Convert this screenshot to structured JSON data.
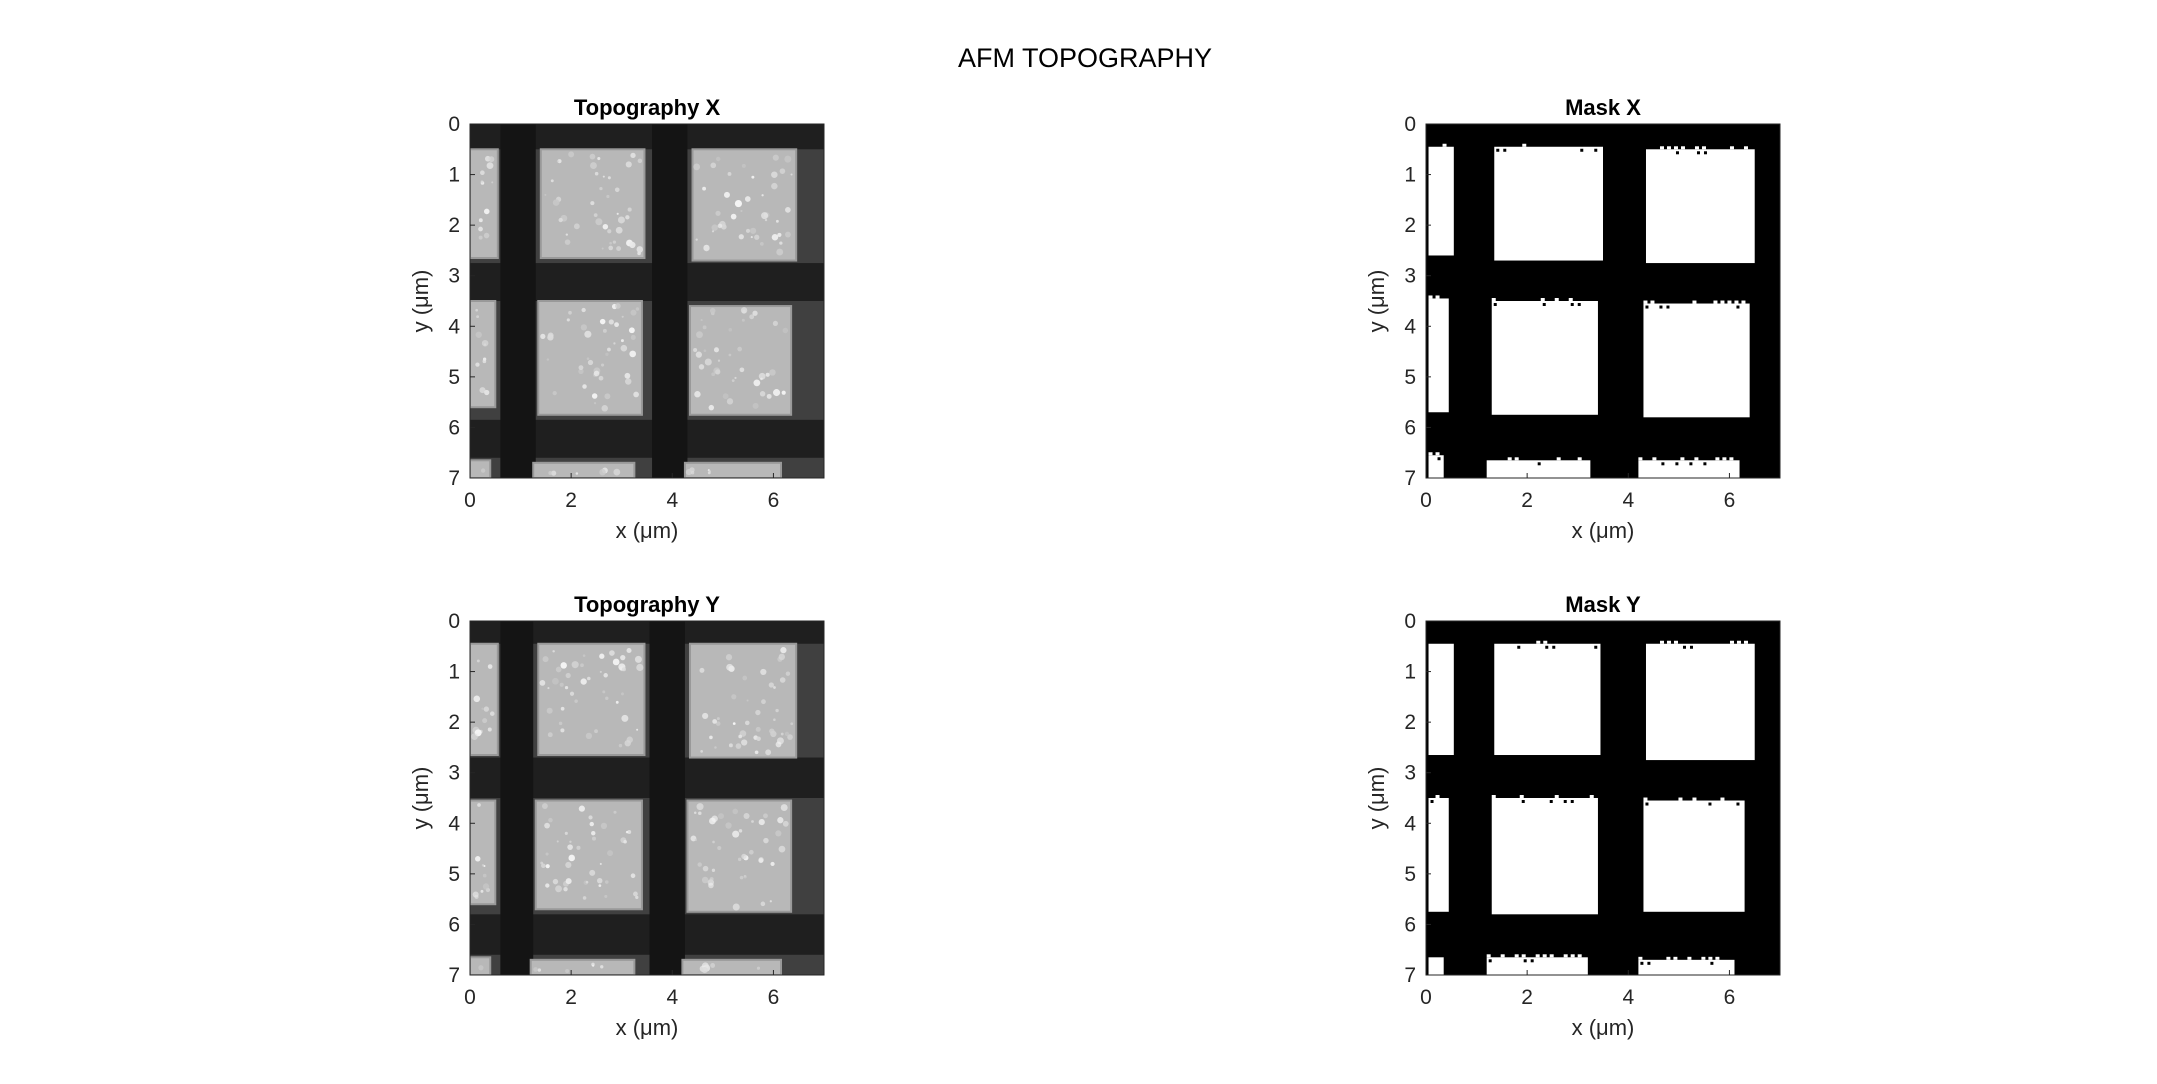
{
  "figure": {
    "title": "AFM TOPOGRAPHY",
    "background": "#ffffff"
  },
  "chart_data": [
    {
      "type": "heatmap",
      "title": "Topography X",
      "xlabel": "x (μm)",
      "ylabel": "y (μm)",
      "xlim": [
        0,
        7
      ],
      "ylim": [
        0,
        7
      ],
      "y_reversed": true,
      "xticks": [
        0,
        2,
        4,
        6
      ],
      "yticks": [
        0,
        1,
        2,
        3,
        4,
        5,
        6,
        7
      ],
      "colormap": "gray",
      "background_value": 0.25,
      "gap_value": 0.12,
      "pad_value": 0.72,
      "squares": [
        {
          "x0": 0.0,
          "x1": 0.55,
          "y0": 0.5,
          "y1": 2.65
        },
        {
          "x0": 1.4,
          "x1": 3.45,
          "y0": 0.5,
          "y1": 2.65
        },
        {
          "x0": 4.4,
          "x1": 6.45,
          "y0": 0.5,
          "y1": 2.7
        },
        {
          "x0": 0.0,
          "x1": 0.5,
          "y0": 3.5,
          "y1": 5.6
        },
        {
          "x0": 1.35,
          "x1": 3.4,
          "y0": 3.5,
          "y1": 5.75
        },
        {
          "x0": 4.35,
          "x1": 6.35,
          "y0": 3.6,
          "y1": 5.75
        },
        {
          "x0": 0.0,
          "x1": 0.4,
          "y0": 6.65,
          "y1": 7.0
        },
        {
          "x0": 1.25,
          "x1": 3.25,
          "y0": 6.7,
          "y1": 7.0
        },
        {
          "x0": 4.25,
          "x1": 6.15,
          "y0": 6.7,
          "y1": 7.0
        }
      ],
      "columns": [
        {
          "x0": 0.6,
          "x1": 1.3
        },
        {
          "x0": 3.6,
          "x1": 4.3
        }
      ],
      "rows": [
        {
          "y0": 0.0,
          "y1": 0.5
        },
        {
          "y0": 2.75,
          "y1": 3.5
        },
        {
          "y0": 5.85,
          "y1": 6.6
        }
      ]
    },
    {
      "type": "heatmap",
      "title": "Mask X",
      "xlabel": "x (μm)",
      "ylabel": "y (μm)",
      "xlim": [
        0,
        7
      ],
      "ylim": [
        0,
        7
      ],
      "y_reversed": true,
      "xticks": [
        0,
        2,
        4,
        6
      ],
      "yticks": [
        0,
        1,
        2,
        3,
        4,
        5,
        6,
        7
      ],
      "colormap": "binary",
      "background_value": 0,
      "pad_value": 1,
      "squares": [
        {
          "x0": 0.05,
          "x1": 0.55,
          "y0": 0.45,
          "y1": 2.6
        },
        {
          "x0": 1.35,
          "x1": 3.5,
          "y0": 0.45,
          "y1": 2.7
        },
        {
          "x0": 4.35,
          "x1": 6.5,
          "y0": 0.5,
          "y1": 2.75
        },
        {
          "x0": 0.05,
          "x1": 0.45,
          "y0": 3.45,
          "y1": 5.7
        },
        {
          "x0": 1.3,
          "x1": 3.4,
          "y0": 3.5,
          "y1": 5.75
        },
        {
          "x0": 4.3,
          "x1": 6.4,
          "y0": 3.55,
          "y1": 5.8
        },
        {
          "x0": 0.05,
          "x1": 0.35,
          "y0": 6.55,
          "y1": 7.0
        },
        {
          "x0": 1.2,
          "x1": 3.25,
          "y0": 6.65,
          "y1": 7.0
        },
        {
          "x0": 4.2,
          "x1": 6.2,
          "y0": 6.65,
          "y1": 7.0
        }
      ]
    },
    {
      "type": "heatmap",
      "title": "Topography Y",
      "xlabel": "x (μm)",
      "ylabel": "y (μm)",
      "xlim": [
        0,
        7
      ],
      "ylim": [
        0,
        7
      ],
      "y_reversed": true,
      "xticks": [
        0,
        2,
        4,
        6
      ],
      "yticks": [
        0,
        1,
        2,
        3,
        4,
        5,
        6,
        7
      ],
      "colormap": "gray",
      "background_value": 0.25,
      "gap_value": 0.12,
      "pad_value": 0.72,
      "squares": [
        {
          "x0": 0.0,
          "x1": 0.55,
          "y0": 0.45,
          "y1": 2.65
        },
        {
          "x0": 1.35,
          "x1": 3.45,
          "y0": 0.45,
          "y1": 2.65
        },
        {
          "x0": 4.35,
          "x1": 6.45,
          "y0": 0.45,
          "y1": 2.7
        },
        {
          "x0": 0.0,
          "x1": 0.5,
          "y0": 3.55,
          "y1": 5.6
        },
        {
          "x0": 1.3,
          "x1": 3.4,
          "y0": 3.55,
          "y1": 5.7
        },
        {
          "x0": 4.3,
          "x1": 6.35,
          "y0": 3.55,
          "y1": 5.75
        },
        {
          "x0": 0.0,
          "x1": 0.4,
          "y0": 6.65,
          "y1": 7.0
        },
        {
          "x0": 1.2,
          "x1": 3.25,
          "y0": 6.7,
          "y1": 7.0
        },
        {
          "x0": 4.2,
          "x1": 6.15,
          "y0": 6.7,
          "y1": 7.0
        }
      ],
      "columns": [
        {
          "x0": 0.6,
          "x1": 1.25
        },
        {
          "x0": 3.55,
          "x1": 4.25
        }
      ],
      "rows": [
        {
          "y0": 0.0,
          "y1": 0.45
        },
        {
          "y0": 2.7,
          "y1": 3.5
        },
        {
          "y0": 5.8,
          "y1": 6.6
        }
      ]
    },
    {
      "type": "heatmap",
      "title": "Mask Y",
      "xlabel": "x (μm)",
      "ylabel": "y (μm)",
      "xlim": [
        0,
        7
      ],
      "ylim": [
        0,
        7
      ],
      "y_reversed": true,
      "xticks": [
        0,
        2,
        4,
        6
      ],
      "yticks": [
        0,
        1,
        2,
        3,
        4,
        5,
        6,
        7
      ],
      "colormap": "binary",
      "background_value": 0,
      "pad_value": 1,
      "squares": [
        {
          "x0": 0.05,
          "x1": 0.55,
          "y0": 0.45,
          "y1": 2.65
        },
        {
          "x0": 1.35,
          "x1": 3.45,
          "y0": 0.45,
          "y1": 2.65
        },
        {
          "x0": 4.35,
          "x1": 6.5,
          "y0": 0.45,
          "y1": 2.75
        },
        {
          "x0": 0.05,
          "x1": 0.45,
          "y0": 3.5,
          "y1": 5.75
        },
        {
          "x0": 1.3,
          "x1": 3.4,
          "y0": 3.5,
          "y1": 5.8
        },
        {
          "x0": 4.3,
          "x1": 6.3,
          "y0": 3.55,
          "y1": 5.75
        },
        {
          "x0": 0.05,
          "x1": 0.35,
          "y0": 6.65,
          "y1": 7.0
        },
        {
          "x0": 1.2,
          "x1": 3.2,
          "y0": 6.65,
          "y1": 7.0
        },
        {
          "x0": 4.2,
          "x1": 6.1,
          "y0": 6.7,
          "y1": 7.0
        }
      ]
    }
  ]
}
